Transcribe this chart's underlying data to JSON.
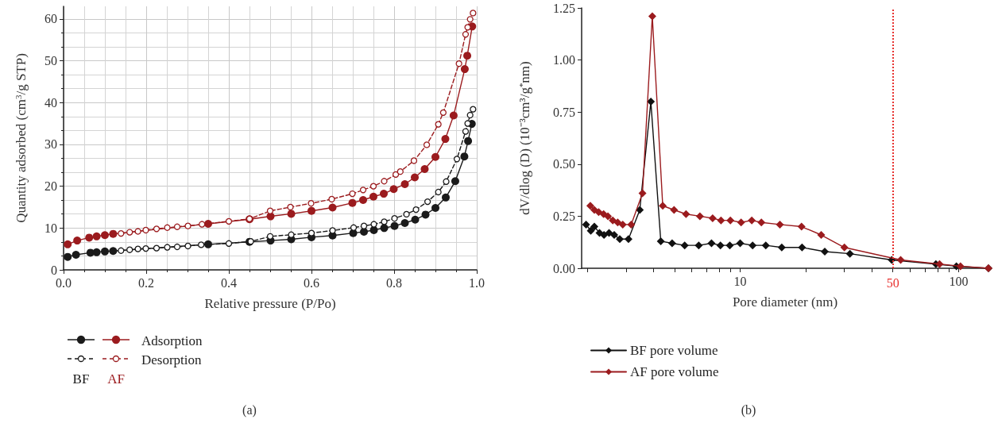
{
  "chart_data": [
    {
      "type": "line",
      "xlabel": "Relative pressure (P/Po)",
      "ylabel": "Quantity adsorbed (cm$^{3}$/g STP)",
      "xlim": [
        0,
        1
      ],
      "xticks": [
        {
          "value": 0,
          "label": "0.0"
        },
        0.2,
        0.4,
        0.6,
        0.8,
        {
          "value": 1,
          "label": "1.0"
        }
      ],
      "ylim": [
        0,
        63
      ],
      "yticks": [
        0,
        10,
        20,
        30,
        40,
        50,
        60
      ],
      "grid": true,
      "legend": "bottom left",
      "marker": "circle",
      "annotations": [
        "Adsorption",
        "Desorption",
        "BF",
        "AF",
        "(a)"
      ],
      "series": [
        {
          "color": "#1a1a1a",
          "line_style": "solid",
          "x": [
            0.01,
            0.03,
            0.065,
            0.08,
            0.1,
            0.12,
            0.35,
            0.45,
            0.501,
            0.551,
            0.6,
            0.651,
            0.701,
            0.727,
            0.751,
            0.776,
            0.801,
            0.826,
            0.851,
            0.876,
            0.9,
            0.925,
            0.948,
            0.97,
            0.979,
            0.988
          ],
          "values": [
            3.1,
            3.6,
            4.1,
            4.2,
            4.4,
            4.5,
            6.1,
            6.7,
            7.0,
            7.3,
            7.8,
            8.2,
            8.8,
            9.1,
            9.5,
            10.0,
            10.5,
            11.2,
            12.0,
            13.2,
            14.8,
            17.3,
            21.2,
            27.1,
            30.8,
            34.9
          ]
        },
        {
          "color": "#1a1a1a",
          "line_style": "dashed",
          "x": [
            0.139,
            0.16,
            0.18,
            0.199,
            0.225,
            0.251,
            0.275,
            0.301,
            0.333,
            0.4,
            0.453,
            0.5,
            0.551,
            0.6,
            0.651,
            0.702,
            0.727,
            0.751,
            0.776,
            0.801,
            0.83,
            0.853,
            0.881,
            0.907,
            0.926,
            0.952,
            0.973,
            0.978,
            0.984,
            0.991
          ],
          "values": [
            4.6,
            4.8,
            5.0,
            5.1,
            5.2,
            5.4,
            5.5,
            5.7,
            6.0,
            6.3,
            6.8,
            8.0,
            8.4,
            8.8,
            9.4,
            10.1,
            10.5,
            10.9,
            11.5,
            12.3,
            13.3,
            14.4,
            16.3,
            18.6,
            21.1,
            26.5,
            33.1,
            35.0,
            37.0,
            38.4
          ]
        },
        {
          "color": "#9b1b1e",
          "line_style": "solid",
          "x": [
            0.01,
            0.033,
            0.062,
            0.08,
            0.1,
            0.12,
            0.35,
            0.45,
            0.501,
            0.551,
            0.6,
            0.651,
            0.699,
            0.725,
            0.75,
            0.775,
            0.799,
            0.826,
            0.85,
            0.874,
            0.9,
            0.924,
            0.944,
            0.971,
            0.977,
            0.989
          ],
          "values": [
            6.1,
            7.0,
            7.7,
            8.0,
            8.3,
            8.6,
            11.0,
            12.1,
            12.8,
            13.4,
            14.1,
            14.9,
            16.0,
            16.7,
            17.5,
            18.2,
            19.3,
            20.5,
            22.1,
            24.1,
            27.0,
            31.3,
            36.9,
            48.0,
            51.2,
            58.2
          ]
        },
        {
          "color": "#9b1b1e",
          "line_style": "dashed",
          "x": [
            0.139,
            0.16,
            0.18,
            0.199,
            0.225,
            0.251,
            0.275,
            0.301,
            0.335,
            0.4,
            0.45,
            0.5,
            0.549,
            0.599,
            0.649,
            0.699,
            0.725,
            0.75,
            0.776,
            0.804,
            0.815,
            0.848,
            0.879,
            0.907,
            0.919,
            0.957,
            0.973,
            0.978,
            0.984,
            0.991
          ],
          "values": [
            8.7,
            9.0,
            9.2,
            9.5,
            9.8,
            10.1,
            10.3,
            10.5,
            10.9,
            11.6,
            12.2,
            14.1,
            15.0,
            15.9,
            16.9,
            18.2,
            19.1,
            20.0,
            21.2,
            22.8,
            23.5,
            26.1,
            29.9,
            34.8,
            37.6,
            49.3,
            56.3,
            58.0,
            59.9,
            61.4
          ]
        }
      ]
    },
    {
      "type": "line",
      "xlabel": "Pore diameter (nm)",
      "ylabel": "dV/dlog (D) (10⁻³cm³/g$^{*}$nm)",
      "log": "x",
      "xlim": [
        1.88,
        137
      ],
      "xticks": [
        {
          "value": 2,
          "label": null
        },
        {
          "value": 3,
          "label": null
        },
        {
          "value": 4,
          "label": null
        },
        {
          "value": 5,
          "label": null
        },
        {
          "value": 6,
          "label": null
        },
        {
          "value": 7,
          "label": null
        },
        {
          "value": 8,
          "label": null
        },
        {
          "value": 9,
          "label": null
        },
        10,
        {
          "value": 20,
          "label": null
        },
        {
          "value": 30,
          "label": null
        },
        {
          "value": 40,
          "label": null
        },
        {
          "value": 50,
          "label": null
        },
        {
          "value": 60,
          "label": null
        },
        {
          "value": 70,
          "label": null
        },
        {
          "value": 80,
          "label": null
        },
        {
          "value": 90,
          "label": null
        },
        100
      ],
      "ylim": [
        0,
        1.25
      ],
      "yticks": [
        {
          "value": 0,
          "label": "0.00"
        },
        {
          "value": 0.25,
          "label": "0.25"
        },
        {
          "value": 0.5,
          "label": "0.50"
        },
        {
          "value": 0.75,
          "label": "0.75"
        },
        {
          "value": 1,
          "label": "1.00"
        },
        {
          "value": 1.25,
          "label": "1.25"
        }
      ],
      "grid": false,
      "legend": "bottom left",
      "marker": "diamond",
      "line_style": "solid",
      "ref_lines": [
        {
          "axis": "x",
          "value": 50,
          "label": "50",
          "color": "#e8312f",
          "line_style": "dotted"
        }
      ],
      "annotations": [
        "(b)"
      ],
      "series": [
        {
          "name": "BF pore volume",
          "color": "#111111",
          "x": [
            1.97,
            2.07,
            2.15,
            2.27,
            2.38,
            2.51,
            2.65,
            2.81,
            3.08,
            3.47,
            3.9,
            4.33,
            4.88,
            5.57,
            6.46,
            7.39,
            8.12,
            8.96,
            10,
            11.4,
            13.1,
            15.5,
            19.2,
            24.4,
            31.8,
            49.4,
            78.7,
            97.7,
            137
          ],
          "values": [
            0.21,
            0.18,
            0.2,
            0.17,
            0.16,
            0.17,
            0.16,
            0.14,
            0.14,
            0.28,
            0.8,
            0.13,
            0.12,
            0.11,
            0.11,
            0.12,
            0.11,
            0.11,
            0.12,
            0.11,
            0.11,
            0.1,
            0.1,
            0.08,
            0.07,
            0.04,
            0.02,
            0.01,
            0
          ]
        },
        {
          "name": "AF pore volume",
          "color": "#9b1b1e",
          "x": [
            2.06,
            2.15,
            2.25,
            2.37,
            2.48,
            2.61,
            2.75,
            2.9,
            3.17,
            3.57,
            3.96,
            4.42,
            4.98,
            5.65,
            6.54,
            7.48,
            8.17,
            9.02,
            10.1,
            11.3,
            12.5,
            15.2,
            19.1,
            23.5,
            30.0,
            54.3,
            81.8,
            102,
            137
          ],
          "values": [
            0.3,
            0.28,
            0.27,
            0.26,
            0.25,
            0.23,
            0.22,
            0.21,
            0.21,
            0.36,
            1.21,
            0.3,
            0.28,
            0.26,
            0.25,
            0.24,
            0.23,
            0.23,
            0.22,
            0.23,
            0.22,
            0.21,
            0.2,
            0.16,
            0.1,
            0.04,
            0.02,
            0.01,
            0
          ]
        }
      ]
    }
  ]
}
